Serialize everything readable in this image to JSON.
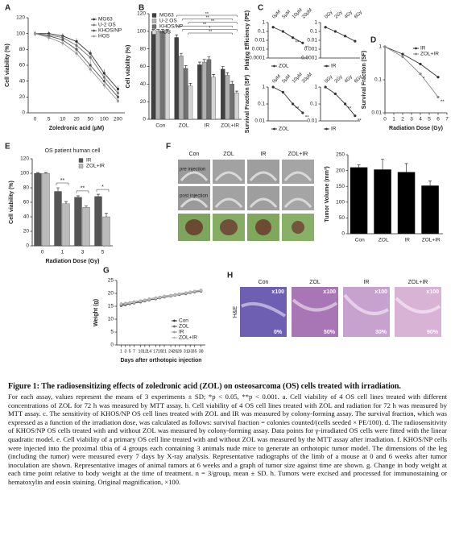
{
  "chart_data": [
    {
      "panel": "A",
      "type": "line",
      "ylabel": "Cell viability (%)",
      "xlabel": "Zoledronic acid (μM)",
      "categories": [
        "0",
        "5",
        "10",
        "20",
        "50",
        "100",
        "200"
      ],
      "ylim": [
        0,
        120
      ],
      "yticks": [
        0,
        20,
        40,
        60,
        80,
        100,
        120
      ],
      "legend": "upper right",
      "series": [
        {
          "name": "MG63",
          "color": "#333333",
          "values": [
            100,
            100,
            97,
            90,
            75,
            50,
            30
          ],
          "errors": [
            3,
            3,
            3,
            4,
            4,
            5,
            4
          ]
        },
        {
          "name": "U-2 OS",
          "color": "#777777",
          "values": [
            100,
            98,
            95,
            85,
            70,
            45,
            25
          ],
          "errors": [
            3,
            3,
            4,
            4,
            5,
            4,
            4
          ]
        },
        {
          "name": "KHOS/NP",
          "color": "#555555",
          "values": [
            100,
            97,
            92,
            80,
            60,
            40,
            20
          ],
          "errors": [
            3,
            4,
            4,
            5,
            5,
            4,
            3
          ]
        },
        {
          "name": "HOS",
          "color": "#999999",
          "values": [
            100,
            95,
            88,
            75,
            55,
            35,
            15
          ],
          "errors": [
            3,
            4,
            4,
            5,
            4,
            4,
            3
          ]
        }
      ]
    },
    {
      "panel": "B",
      "type": "bar",
      "ylabel": "Cell viability (%)",
      "categories": [
        "Con",
        "ZOL",
        "IR",
        "ZOL+IR"
      ],
      "ylim": [
        0,
        120
      ],
      "yticks": [
        0,
        20,
        40,
        60,
        80,
        100,
        120
      ],
      "legend": "upper left",
      "annotations": [
        "**",
        "**",
        "**",
        "**",
        "*",
        "**"
      ],
      "series": [
        {
          "name": "MG63",
          "color": "#404040",
          "values": [
            100,
            93,
            62,
            57
          ],
          "errors": [
            2,
            3,
            3,
            3
          ]
        },
        {
          "name": "U-2 OS",
          "color": "#b0b0b0",
          "values": [
            100,
            72,
            65,
            50
          ],
          "errors": [
            2,
            3,
            3,
            3
          ]
        },
        {
          "name": "KHOS/NP",
          "color": "#707070",
          "values": [
            100,
            58,
            68,
            40
          ],
          "errors": [
            2,
            3,
            3,
            3
          ]
        },
        {
          "name": "HOS",
          "color": "#d5d5d5",
          "values": [
            100,
            38,
            48,
            30
          ],
          "errors": [
            2,
            3,
            3,
            2
          ]
        }
      ]
    },
    {
      "panel": "C",
      "type": "line",
      "ylabel": "Plating Efficiency (PE)",
      "log": true,
      "categories": [
        "0μM",
        "5μM",
        "10μM",
        "20μM"
      ],
      "ylim": [
        0.0001,
        1
      ],
      "yticks": [
        1,
        0.1,
        0.01,
        0.001,
        0.0001
      ],
      "legend": "lower left",
      "annotations": [
        "**",
        "**"
      ],
      "series": [
        {
          "name": "ZOL",
          "color": "#333333",
          "values": [
            0.3,
            0.1,
            0.02,
            0.005
          ]
        }
      ]
    },
    {
      "type": "line",
      "log": true,
      "categories": [
        "0Gy",
        "2Gy",
        "4Gy",
        "6Gy"
      ],
      "ylim": [
        0.0001,
        1
      ],
      "yticks": [
        1,
        0.1,
        0.01,
        0.001,
        0.0001
      ],
      "legend": "lower left",
      "series": [
        {
          "name": "IR",
          "color": "#333333",
          "values": [
            0.3,
            0.1,
            0.03,
            0.008
          ]
        }
      ]
    },
    {
      "type": "line",
      "ylabel": "Survival Fraction (SF)",
      "log": true,
      "categories": [
        "0μM",
        "5μM",
        "10μM",
        "20μM"
      ],
      "ylim": [
        0.01,
        1
      ],
      "yticks": [
        1,
        0.1,
        0.01
      ],
      "legend": "lower left",
      "annotations": [
        "**",
        "**"
      ],
      "series": [
        {
          "name": "ZOL",
          "color": "#333333",
          "values": [
            1,
            0.5,
            0.1,
            0.03
          ]
        }
      ]
    },
    {
      "type": "line",
      "log": true,
      "categories": [
        "0Gy",
        "2Gy",
        "4Gy",
        "6Gy"
      ],
      "ylim": [
        0.01,
        1
      ],
      "yticks": [
        1,
        0.1,
        0.01
      ],
      "legend": "lower left",
      "annotations": [
        "**",
        "**"
      ],
      "series": [
        {
          "name": "IR",
          "color": "#333333",
          "values": [
            1,
            0.4,
            0.1,
            0.02
          ]
        }
      ]
    },
    {
      "panel": "D",
      "type": "line",
      "ylabel": "Survival Fraction (SF)",
      "xlabel": "Radiation Dose (Gy)",
      "log": true,
      "x": [
        0,
        2,
        4,
        6
      ],
      "xlim": [
        0,
        7
      ],
      "xticks": [
        0,
        1,
        2,
        3,
        4,
        5,
        6,
        7
      ],
      "ylim": [
        0.01,
        1
      ],
      "yticks": [
        1,
        0.1,
        0.01
      ],
      "legend": "upper right",
      "annotations": [
        "*",
        "**"
      ],
      "series": [
        {
          "name": "IR",
          "color": "#333333",
          "values": [
            1,
            0.6,
            0.3,
            0.12
          ]
        },
        {
          "name": "ZOL+IR",
          "color": "#888888",
          "values": [
            1,
            0.5,
            0.15,
            0.03
          ]
        }
      ]
    },
    {
      "panel": "E",
      "type": "bar",
      "title": "OS patient human cell",
      "ylabel": "Cell viability (%)",
      "xlabel": "Radiation Dose (Gy)",
      "categories": [
        "0",
        "1",
        "3",
        "5"
      ],
      "ylim": [
        0,
        120
      ],
      "yticks": [
        0,
        20,
        40,
        60,
        80,
        100,
        120
      ],
      "legend": "upper right",
      "annotations": [
        "**",
        "**",
        "*"
      ],
      "series": [
        {
          "name": "IR",
          "color": "#555555",
          "values": [
            100,
            75,
            67,
            68
          ],
          "errors": [
            1,
            5,
            2,
            3
          ]
        },
        {
          "name": "ZOL+IR",
          "color": "#bbbbbb",
          "values": [
            100,
            58,
            53,
            40
          ],
          "errors": [
            1,
            3,
            2,
            5
          ]
        }
      ]
    },
    {
      "type": "bar",
      "ylabel": "Tumor Volume (mm³)",
      "categories": [
        "Con",
        "ZOL",
        "IR",
        "ZOL+IR"
      ],
      "ylim": [
        0,
        250
      ],
      "yticks": [
        0,
        50,
        100,
        150,
        200,
        250
      ],
      "series": [
        {
          "name": "Tumor Volume",
          "color": "#000000",
          "values": [
            210,
            203,
            195,
            152
          ],
          "errors": [
            8,
            33,
            27,
            15
          ]
        }
      ]
    },
    {
      "panel": "G",
      "type": "line",
      "ylabel": "Weight (g)",
      "xlabel": "Days after orthotopic injection",
      "x": [
        1,
        3,
        5,
        7,
        10,
        12,
        14,
        17,
        19,
        21,
        24,
        26,
        28,
        31,
        33,
        35,
        38
      ],
      "xlim": [
        -1,
        40
      ],
      "xticks": [
        1,
        3,
        5,
        7,
        10,
        12,
        14,
        17,
        19,
        21,
        24,
        26,
        28,
        31,
        33,
        35,
        38
      ],
      "ylim": [
        0,
        25
      ],
      "yticks": [
        0,
        5,
        10,
        15,
        20,
        25
      ],
      "legend": "lower right",
      "series": [
        {
          "name": "Con",
          "color": "#333333",
          "values": [
            15.5,
            15.8,
            16,
            16.3,
            16.8,
            17.2,
            17.6,
            18,
            18.3,
            18.7,
            19,
            19.3,
            19.6,
            20,
            20.3,
            20.6,
            21
          ]
        },
        {
          "name": "ZOL",
          "color": "#666666",
          "values": [
            15.2,
            15.5,
            15.9,
            16.2,
            16.6,
            17,
            17.4,
            17.8,
            18.2,
            18.5,
            18.9,
            19.2,
            19.5,
            19.8,
            20.2,
            20.5,
            20.8
          ]
        },
        {
          "name": "IR",
          "color": "#999999",
          "values": [
            16,
            16.2,
            16.5,
            16.8,
            17.2,
            17.5,
            17.9,
            18.3,
            18.6,
            19,
            19.3,
            19.6,
            19.9,
            20.3,
            20.6,
            20.9,
            21.3
          ]
        },
        {
          "name": "ZOL+IR",
          "color": "#bbbbbb",
          "values": [
            15.8,
            16,
            16.3,
            16.5,
            17,
            17.3,
            17.7,
            18.1,
            18.4,
            18.8,
            19.1,
            19.4,
            19.8,
            20.1,
            20.4,
            20.8,
            21.1
          ]
        }
      ]
    }
  ],
  "images": {
    "F": {
      "panel": "F",
      "columns": [
        "Con",
        "ZOL",
        "IR",
        "ZOL+IR"
      ],
      "rows": [
        "pre injection",
        "post injection"
      ]
    },
    "H": {
      "panel": "H",
      "columns": [
        "Con",
        "ZOL",
        "IR",
        "ZOL+IR"
      ],
      "row_label": "H&E",
      "magnification": [
        "x100",
        "x100",
        "x100",
        "x100"
      ],
      "percent": [
        "0%",
        "50%",
        "30%",
        "90%"
      ]
    }
  },
  "caption": {
    "title": "Figure 1: The radiosensitizing effects of zoledronic acid (ZOL) on osteosarcoma (OS) cells treated with irradiation.",
    "body": "For each assay, values represent the means of 3 experiments ± SD; *p < 0.05, **p < 0.001. a. Cell viability of 4 OS cell lines treated with different concentrations of ZOL for 72 h was measured by MTT assay. b. Cell viability of 4 OS cell lines treated with ZOL and radiation for 72 h was measured by MTT assay. c. The sensitivity of KHOS/NP OS cell lines treated with ZOL and IR was measured by colony-forming assay. The survival fraction, which was expressed as a function of the irradiation dose, was calculated as follows: survival fraction = colonies counted/(cells seeded × PE/100). d. The radiosensitivity of KHOS/NP OS cells treated with and without ZOL was measured by colony-forming assay. Data points for γ-irradiated OS cells were fitted with the linear quadratic model. e. Cell viability of a primary OS cell line treated with and without ZOL was measured by the MTT assay after irradiation. f. KHOS/NP cells were injected into the proximal tibia of 4 groups each containing 3 animals nude mice to generate an orthotopic tumor model. The dimensions of the leg (including the tumor) were measured every 7 days by X-ray analysis. Representative radiographs of the limb of a mouse at 0 and 6 weeks after tumor inoculation are shown. Representative images of animal tumors at 6 weeks and a graph of tumor size against time are shown. g. Change in body weight at each time point relative to body weight at the time of treatment. n = 3/group, mean ± SD. h. Tumors were excised and processed for immunostaining or hematoxylin and eosin staining. Original magnification, ×100."
  }
}
